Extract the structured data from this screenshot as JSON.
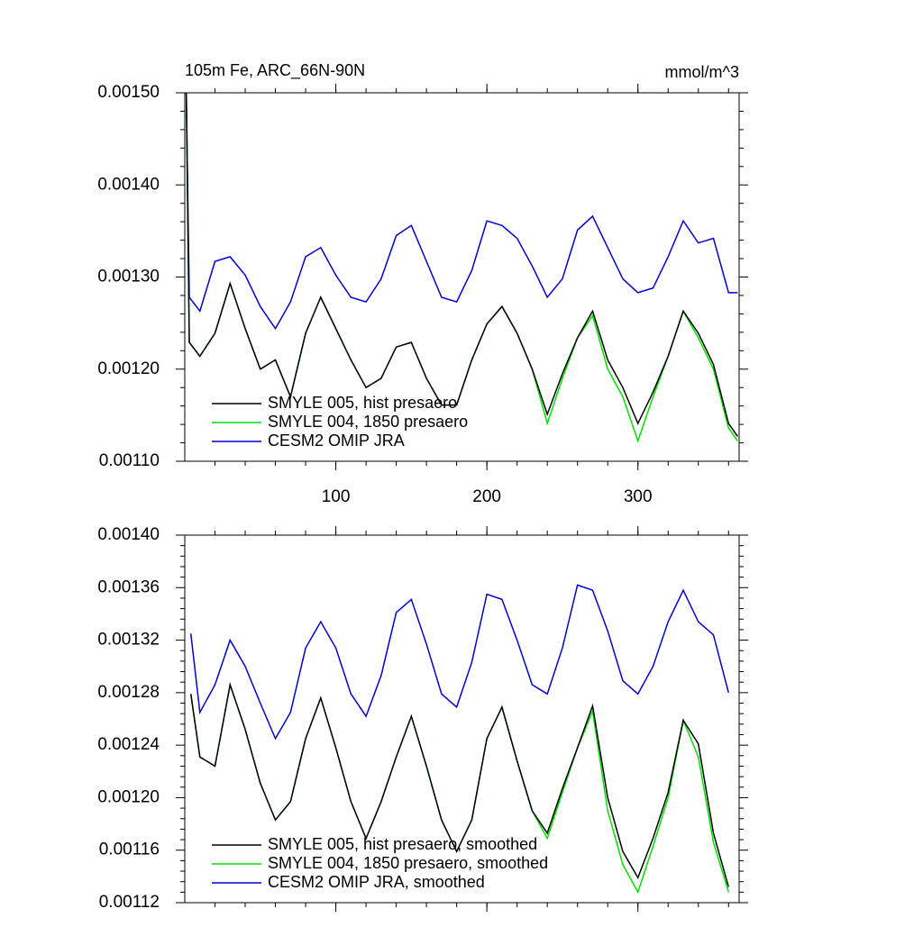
{
  "chart_data": [
    {
      "type": "line",
      "title": "105m Fe, ARC_66N-90N",
      "units": "mmol/m^3",
      "x": [
        1,
        3,
        10,
        20,
        30,
        40,
        50,
        60,
        70,
        80,
        90,
        100,
        110,
        120,
        130,
        140,
        150,
        160,
        170,
        180,
        190,
        200,
        210,
        220,
        230,
        240,
        250,
        260,
        270,
        280,
        290,
        300,
        310,
        320,
        330,
        340,
        350,
        360,
        366
      ],
      "series": [
        {
          "name": "SMYLE 005, hist presaero",
          "color": "#000000",
          "values": [
            0.0015,
            0.001229,
            0.001214,
            0.001239,
            0.001293,
            0.001244,
            0.0012,
            0.00121,
            0.00117,
            0.001239,
            0.001278,
            0.001244,
            0.00121,
            0.00118,
            0.00119,
            0.001224,
            0.001229,
            0.00119,
            0.001161,
            0.001161,
            0.00121,
            0.001249,
            0.001268,
            0.001239,
            0.0012,
            0.001151,
            0.001195,
            0.001234,
            0.001263,
            0.00121,
            0.00118,
            0.001141,
            0.001175,
            0.001214,
            0.001263,
            0.001239,
            0.001205,
            0.001141,
            0.001127
          ]
        },
        {
          "name": "SMYLE 004, 1850 presaero",
          "color": "#00e000",
          "values": [
            0.0015,
            0.001229,
            0.001214,
            0.001239,
            0.001293,
            0.001244,
            0.0012,
            0.00121,
            0.00117,
            0.001239,
            0.001278,
            0.001244,
            0.00121,
            0.00118,
            0.00119,
            0.001224,
            0.001229,
            0.00119,
            0.001161,
            0.001161,
            0.00121,
            0.001249,
            0.001268,
            0.001239,
            0.0012,
            0.001141,
            0.00119,
            0.001234,
            0.001258,
            0.0012,
            0.00117,
            0.001122,
            0.00117,
            0.001214,
            0.001263,
            0.001234,
            0.0012,
            0.001136,
            0.001122
          ]
        },
        {
          "name": "CESM2 OMIP JRA",
          "color": "#0000d0",
          "values": [
            0.0015,
            0.001278,
            0.001263,
            0.001317,
            0.001322,
            0.001302,
            0.001268,
            0.001244,
            0.001273,
            0.001322,
            0.001332,
            0.001302,
            0.001278,
            0.001273,
            0.001298,
            0.001345,
            0.001356,
            0.001317,
            0.001278,
            0.001273,
            0.001307,
            0.001361,
            0.001356,
            0.001342,
            0.001312,
            0.001278,
            0.001298,
            0.001351,
            0.001366,
            0.001332,
            0.001298,
            0.001283,
            0.001288,
            0.001322,
            0.001361,
            0.001337,
            0.001342,
            0.001283,
            0.001283
          ]
        }
      ],
      "xlim": [
        0,
        367
      ],
      "xticks": [
        100,
        200,
        300
      ],
      "show_xtick_labels": true,
      "ylim": [
        0.0011,
        0.0015
      ],
      "yticks": [
        {
          "value": 0.0011,
          "label": "0.00110"
        },
        {
          "value": 0.0012,
          "label": "0.00120"
        },
        {
          "value": 0.0013,
          "label": "0.00130"
        },
        {
          "value": 0.0014,
          "label": "0.00140"
        },
        {
          "value": 0.0015,
          "label": "0.00150"
        }
      ],
      "legend": "lower left",
      "grid": false
    },
    {
      "type": "line",
      "x": [
        4,
        10,
        20,
        30,
        40,
        50,
        60,
        70,
        80,
        90,
        100,
        110,
        120,
        130,
        140,
        150,
        160,
        170,
        180,
        190,
        200,
        210,
        220,
        230,
        240,
        250,
        260,
        270,
        280,
        290,
        300,
        310,
        320,
        330,
        340,
        350,
        360
      ],
      "series": [
        {
          "name": "SMYLE 005, hist presaero, smoothed",
          "color": "#000000",
          "values": [
            0.001279,
            0.001231,
            0.001224,
            0.001286,
            0.001252,
            0.001211,
            0.001183,
            0.001197,
            0.001245,
            0.001276,
            0.001238,
            0.001197,
            0.001169,
            0.001197,
            0.001231,
            0.001262,
            0.001224,
            0.001183,
            0.001159,
            0.001183,
            0.001245,
            0.001269,
            0.001228,
            0.00119,
            0.001173,
            0.001207,
            0.001238,
            0.00127,
            0.0012,
            0.001159,
            0.001139,
            0.001169,
            0.001204,
            0.001259,
            0.001241,
            0.001173,
            0.001132
          ]
        },
        {
          "name": "SMYLE 004, 1850 presaero, smoothed",
          "color": "#00e000",
          "values": [
            0.001279,
            0.001231,
            0.001224,
            0.001286,
            0.001252,
            0.001211,
            0.001183,
            0.001197,
            0.001245,
            0.001276,
            0.001238,
            0.001197,
            0.001169,
            0.001197,
            0.001231,
            0.001262,
            0.001224,
            0.001183,
            0.001159,
            0.001183,
            0.001245,
            0.001269,
            0.001228,
            0.00119,
            0.001169,
            0.001204,
            0.001238,
            0.001266,
            0.00119,
            0.001149,
            0.001128,
            0.001163,
            0.0012,
            0.001259,
            0.001231,
            0.001166,
            0.001128
          ]
        },
        {
          "name": "CESM2 OMIP JRA, smoothed",
          "color": "#0000d0",
          "values": [
            0.001325,
            0.001265,
            0.001286,
            0.00132,
            0.0013,
            0.001272,
            0.001245,
            0.001265,
            0.001314,
            0.001334,
            0.001314,
            0.001279,
            0.001262,
            0.001293,
            0.001341,
            0.001351,
            0.001317,
            0.001279,
            0.001269,
            0.001303,
            0.001355,
            0.001351,
            0.00132,
            0.001286,
            0.001279,
            0.001314,
            0.001362,
            0.001358,
            0.001327,
            0.001289,
            0.001279,
            0.0013,
            0.001334,
            0.001358,
            0.001334,
            0.001324,
            0.00128
          ]
        }
      ],
      "xlim": [
        0,
        367
      ],
      "xticks": [
        100,
        200,
        300
      ],
      "show_xtick_labels": false,
      "ylim": [
        0.00112,
        0.0014
      ],
      "yticks": [
        {
          "value": 0.00112,
          "label": "0.00112"
        },
        {
          "value": 0.00116,
          "label": "0.00116"
        },
        {
          "value": 0.0012,
          "label": "0.00120"
        },
        {
          "value": 0.00124,
          "label": "0.00124"
        },
        {
          "value": 0.00128,
          "label": "0.00128"
        },
        {
          "value": 0.00132,
          "label": "0.00132"
        },
        {
          "value": 0.00136,
          "label": "0.00136"
        },
        {
          "value": 0.0014,
          "label": "0.00140"
        }
      ],
      "legend": "lower left",
      "grid": false
    }
  ]
}
